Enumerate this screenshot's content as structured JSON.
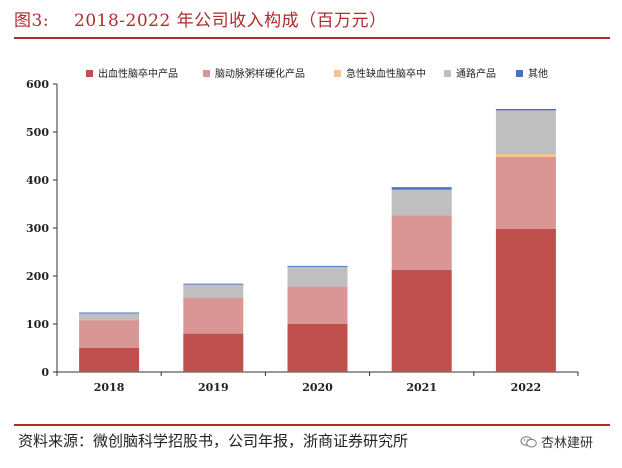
{
  "figure": {
    "label": "图3:",
    "title": "2018-2022 年公司收入构成（百万元）",
    "source": "资料来源：微创脑科学招股书，公司年报，浙商证券研究所",
    "brand": "杏林建研"
  },
  "chart_data": {
    "type": "bar",
    "stacked": true,
    "categories": [
      "2018",
      "2019",
      "2020",
      "2021",
      "2022"
    ],
    "series": [
      {
        "name": "出血性脑卒中产品",
        "color": "#c0504d",
        "values": [
          50,
          80,
          100,
          213,
          298
        ]
      },
      {
        "name": "脑动脉粥样硬化产品",
        "color": "#d99694",
        "values": [
          58,
          75,
          78,
          113,
          150
        ]
      },
      {
        "name": "急性缺血性脑卒中",
        "color": "#fac090",
        "values": [
          0,
          0,
          0,
          0,
          6
        ]
      },
      {
        "name": "通路产品",
        "color": "#bfbfbf",
        "values": [
          14,
          27,
          41,
          54,
          91
        ]
      },
      {
        "name": "其他",
        "color": "#4472c4",
        "values": [
          2,
          2,
          2,
          5,
          3
        ]
      }
    ],
    "ylim": [
      0,
      600
    ],
    "yticks": [
      0,
      100,
      200,
      300,
      400,
      500,
      600
    ],
    "legend": "top",
    "grid": false,
    "xlabel": "",
    "ylabel": ""
  }
}
